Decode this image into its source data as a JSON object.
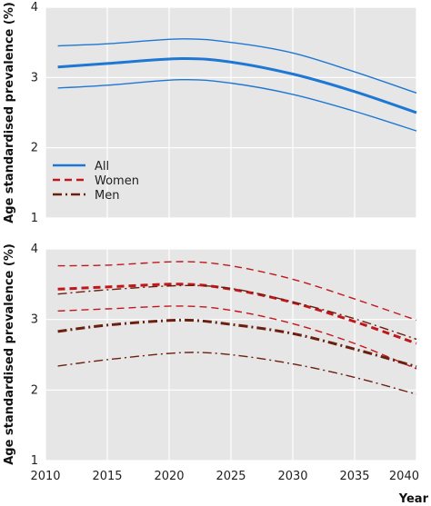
{
  "chart_data": [
    {
      "type": "line",
      "ylabel": "Age standardised prevalence (%)",
      "ylim": [
        1,
        4
      ],
      "xlim": [
        2010,
        2040
      ],
      "yticks": [
        "1",
        "2",
        "3",
        "4"
      ],
      "grid": true,
      "background": "#e6e6e6",
      "legend_position": "bottom-left",
      "legend": [
        {
          "label": "All",
          "color": "#1f77d4",
          "style": "solid"
        },
        {
          "label": "Women",
          "color": "#c0171d",
          "style": "dashed"
        },
        {
          "label": "Men",
          "color": "#6b1f0f",
          "style": "dashdot"
        }
      ],
      "series": [
        {
          "name": "All",
          "role": "estimate",
          "color": "#1f77d4",
          "style": "solid",
          "x": [
            2011,
            2015,
            2021,
            2025,
            2030,
            2035,
            2040
          ],
          "y": [
            3.15,
            3.2,
            3.27,
            3.22,
            3.05,
            2.8,
            2.5
          ]
        },
        {
          "name": "All",
          "role": "upper-bound",
          "color": "#1f77d4",
          "style": "solid",
          "x": [
            2011,
            2015,
            2021,
            2025,
            2030,
            2035,
            2040
          ],
          "y": [
            3.45,
            3.48,
            3.55,
            3.5,
            3.35,
            3.08,
            2.78
          ]
        },
        {
          "name": "All",
          "role": "lower-bound",
          "color": "#1f77d4",
          "style": "solid",
          "x": [
            2011,
            2015,
            2021,
            2025,
            2030,
            2035,
            2040
          ],
          "y": [
            2.85,
            2.89,
            2.97,
            2.92,
            2.76,
            2.52,
            2.24
          ]
        }
      ]
    },
    {
      "type": "line",
      "xlabel": "Year",
      "ylabel": "Age standardised prevalence (%)",
      "ylim": [
        1,
        4
      ],
      "xlim": [
        2010,
        2040
      ],
      "xticks": [
        "2010",
        "2015",
        "2020",
        "2025",
        "2030",
        "2035",
        "2040"
      ],
      "yticks": [
        "1",
        "2",
        "3",
        "4"
      ],
      "grid": true,
      "background": "#e6e6e6",
      "series": [
        {
          "name": "Women",
          "role": "estimate",
          "color": "#c0171d",
          "style": "dashed",
          "x": [
            2011,
            2015,
            2021,
            2025,
            2030,
            2035,
            2040
          ],
          "y": [
            3.43,
            3.46,
            3.5,
            3.43,
            3.24,
            2.97,
            2.66
          ]
        },
        {
          "name": "Women",
          "role": "upper-bound",
          "color": "#c0171d",
          "style": "dashed",
          "x": [
            2011,
            2015,
            2021,
            2025,
            2030,
            2035,
            2040
          ],
          "y": [
            3.76,
            3.77,
            3.82,
            3.76,
            3.57,
            3.29,
            2.99
          ]
        },
        {
          "name": "Women",
          "role": "lower-bound",
          "color": "#c0171d",
          "style": "dashed",
          "x": [
            2011,
            2015,
            2021,
            2025,
            2030,
            2035,
            2040
          ],
          "y": [
            3.12,
            3.15,
            3.19,
            3.13,
            2.94,
            2.66,
            2.3
          ]
        },
        {
          "name": "Men",
          "role": "estimate",
          "color": "#6b1f0f",
          "style": "dashdot",
          "x": [
            2011,
            2015,
            2021,
            2025,
            2030,
            2035,
            2040
          ],
          "y": [
            2.83,
            2.92,
            2.99,
            2.93,
            2.8,
            2.58,
            2.33
          ]
        },
        {
          "name": "Men",
          "role": "upper-bound",
          "color": "#6b1f0f",
          "style": "dashdot",
          "x": [
            2011,
            2015,
            2021,
            2025,
            2030,
            2035,
            2040
          ],
          "y": [
            3.36,
            3.42,
            3.48,
            3.44,
            3.25,
            3.01,
            2.72
          ]
        },
        {
          "name": "Men",
          "role": "lower-bound",
          "color": "#6b1f0f",
          "style": "dashdot",
          "x": [
            2011,
            2015,
            2021,
            2025,
            2030,
            2035,
            2040
          ],
          "y": [
            2.34,
            2.43,
            2.53,
            2.5,
            2.37,
            2.18,
            1.94
          ]
        }
      ]
    }
  ]
}
